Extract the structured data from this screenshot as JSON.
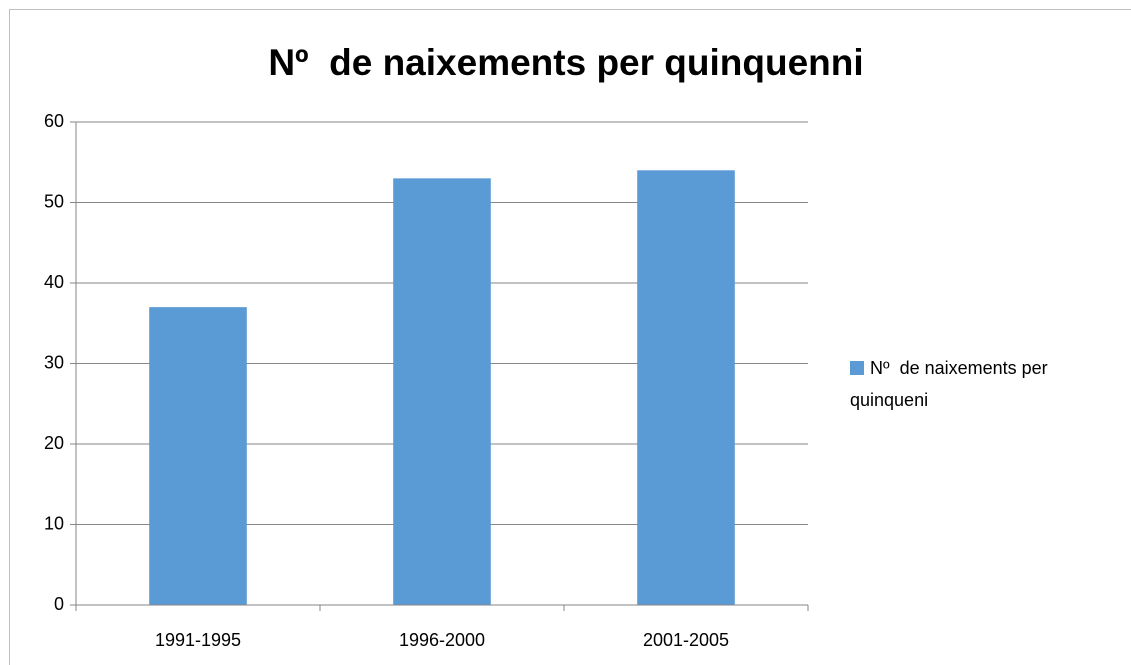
{
  "chart_data": {
    "type": "bar",
    "title": "Nº  de naixements per quinquenni",
    "categories": [
      "1991-1995",
      "1996-2000",
      "2001-2005"
    ],
    "series": [
      {
        "name": "Nº  de naixements per quinqueni",
        "color": "#5b9bd5",
        "values": [
          37,
          53,
          54
        ]
      }
    ],
    "ylim": [
      0,
      60
    ],
    "yticks": [
      0,
      10,
      20,
      30,
      40,
      50,
      60
    ],
    "grid": true,
    "legend": "right"
  }
}
